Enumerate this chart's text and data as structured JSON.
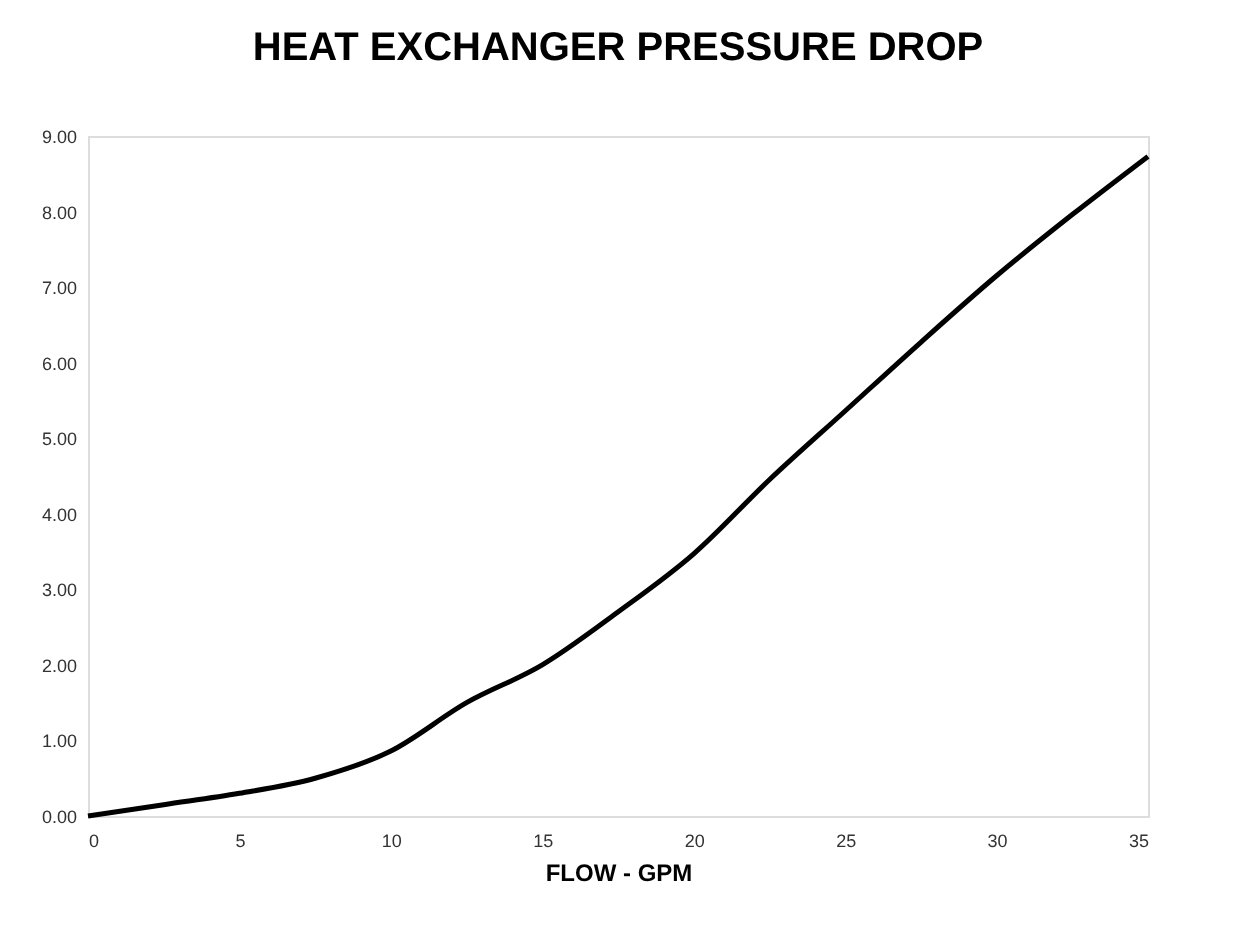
{
  "chart_data": {
    "type": "line",
    "title": "HEAT EXCHANGER PRESSURE DROP",
    "xlabel": "FLOW - GPM",
    "x": [
      0,
      2.5,
      5,
      7.5,
      10,
      12.5,
      15,
      17.5,
      20,
      22.5,
      25,
      27.5,
      30,
      32.5,
      35
    ],
    "series": [
      {
        "color": "#000000",
        "values": [
          0,
          0.15,
          0.3,
          0.5,
          0.86,
          1.5,
          2.0,
          2.7,
          3.47,
          4.45,
          5.36,
          6.27,
          7.15,
          7.96,
          8.73
        ]
      }
    ],
    "xlim": [
      0,
      35
    ],
    "xticks": [
      0,
      5,
      10,
      15,
      20,
      25,
      30,
      35
    ],
    "ylim": [
      0,
      9
    ],
    "yticks": [
      {
        "value": 0,
        "label": "0.00"
      },
      {
        "value": 1,
        "label": "1.00"
      },
      {
        "value": 2,
        "label": "2.00"
      },
      {
        "value": 3,
        "label": "3.00"
      },
      {
        "value": 4,
        "label": "4.00"
      },
      {
        "value": 5,
        "label": "5.00"
      },
      {
        "value": 6,
        "label": "6.00"
      },
      {
        "value": 7,
        "label": "7.00"
      },
      {
        "value": 8,
        "label": "8.00"
      },
      {
        "value": 9,
        "label": "9.00"
      }
    ],
    "grid": false,
    "marker": "none",
    "line_style": "solid"
  }
}
